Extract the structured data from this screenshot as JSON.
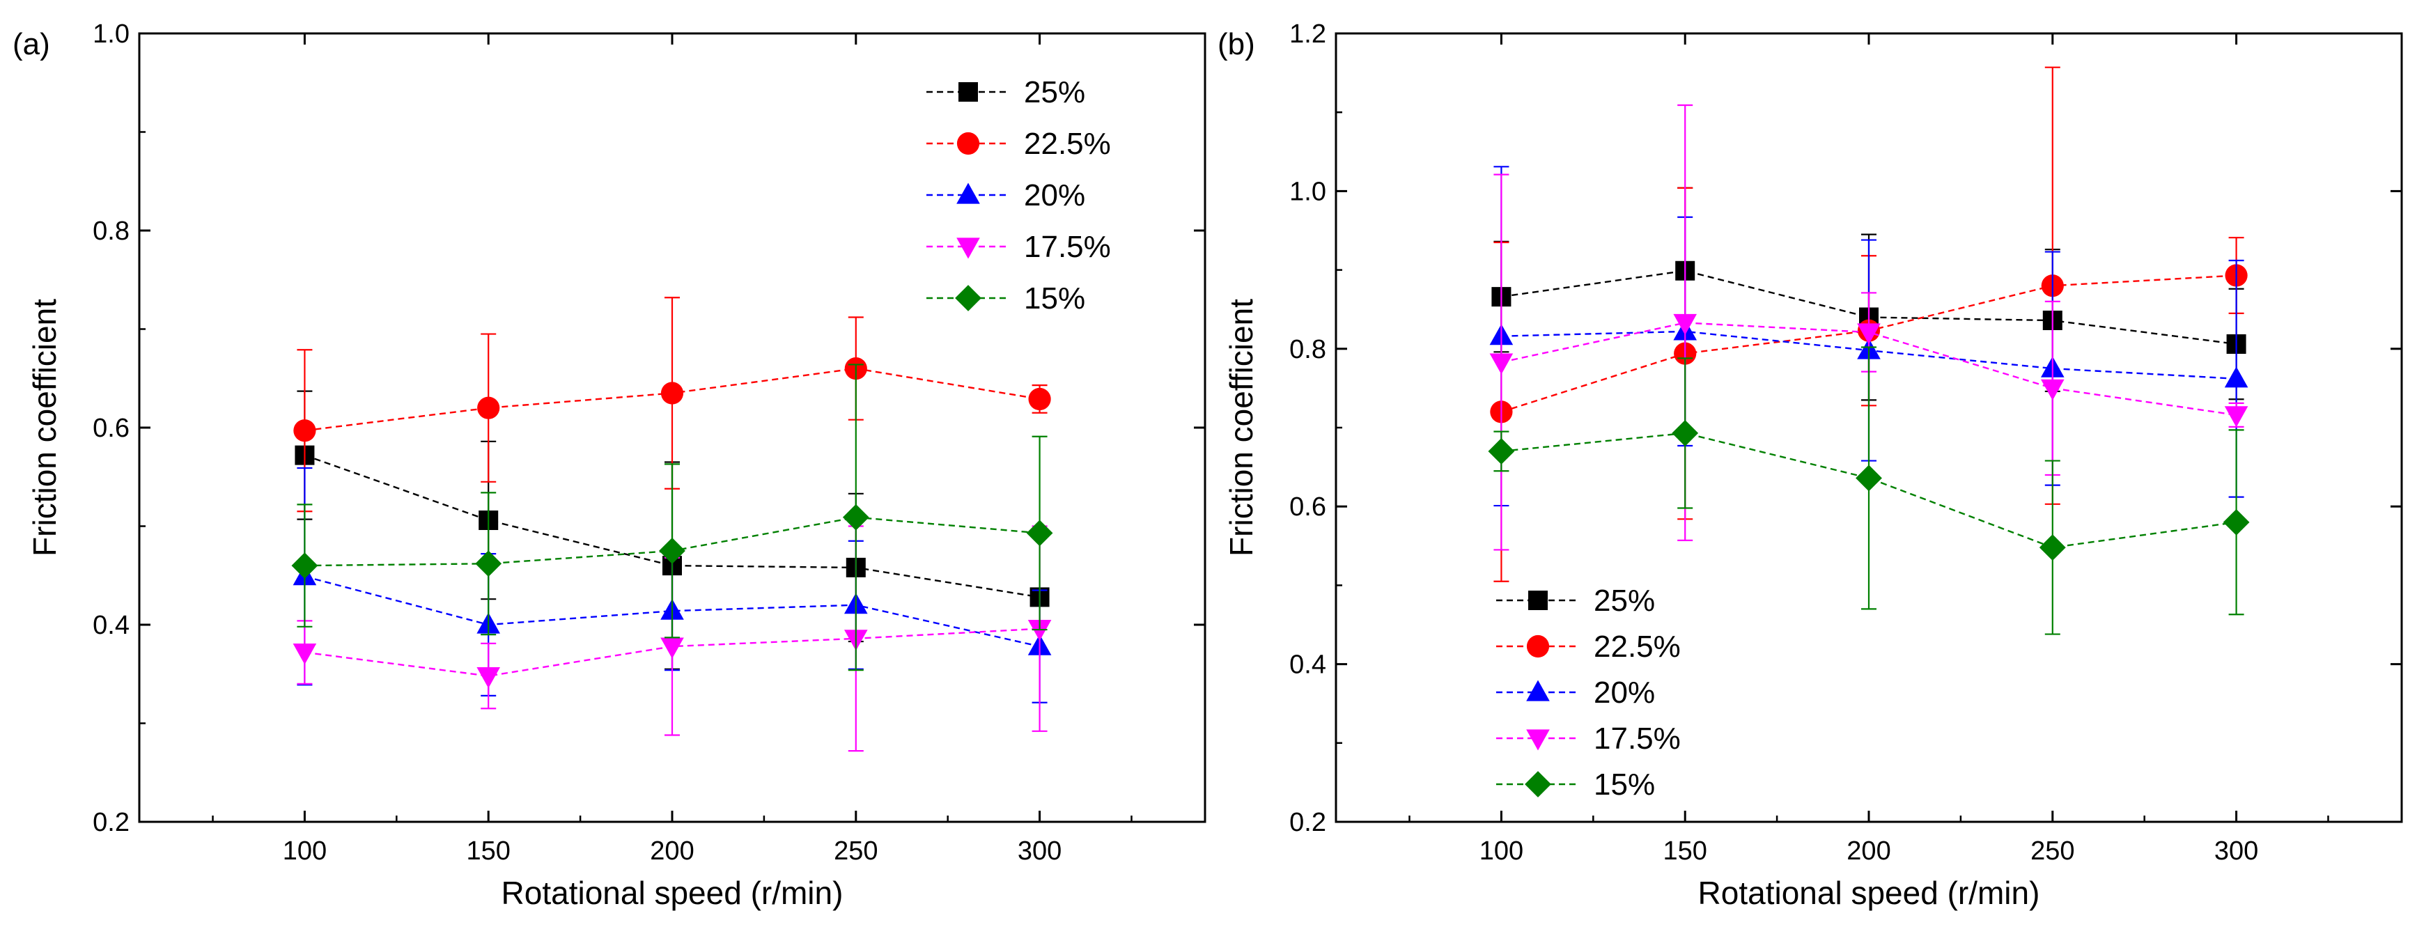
{
  "chart_data": [
    {
      "panel_label": "(a)",
      "type": "line",
      "xlabel": "Rotational speed (r/min)",
      "ylabel": "Friction coefficient",
      "xlim": [
        55,
        345
      ],
      "ylim": [
        0.2,
        1.0
      ],
      "x": [
        100,
        150,
        200,
        250,
        300
      ],
      "xticks": [
        100,
        150,
        200,
        250,
        300
      ],
      "yticks": [
        0.2,
        0.4,
        0.6,
        0.8,
        1.0
      ],
      "ytick_labels": [
        "0.2",
        "0.4",
        "0.6",
        "0.8",
        "1.0"
      ],
      "grid": false,
      "legend_position": "top-right",
      "series": [
        {
          "name": "25%",
          "color": "#000000",
          "marker": "square",
          "values": [
            0.572,
            0.506,
            0.46,
            0.458,
            0.428
          ],
          "err": [
            0.065,
            0.08,
            0.105,
            0.075,
            0.0
          ]
        },
        {
          "name": "22.5%",
          "color": "#ff0000",
          "marker": "circle",
          "values": [
            0.597,
            0.62,
            0.635,
            0.66,
            0.629
          ],
          "err": [
            0.082,
            0.075,
            0.097,
            0.052,
            0.014
          ]
        },
        {
          "name": "20%",
          "color": "#0000ff",
          "marker": "triangle-up",
          "values": [
            0.449,
            0.4,
            0.414,
            0.42,
            0.378
          ],
          "err": [
            0.11,
            0.072,
            0.06,
            0.065,
            0.057
          ]
        },
        {
          "name": "17.5%",
          "color": "#ff00ff",
          "marker": "triangle-down",
          "values": [
            0.372,
            0.348,
            0.378,
            0.386,
            0.396
          ],
          "err": [
            0.032,
            0.033,
            0.09,
            0.114,
            0.104
          ]
        },
        {
          "name": "15%",
          "color": "#008000",
          "marker": "diamond",
          "values": [
            0.46,
            0.462,
            0.475,
            0.509,
            0.493
          ],
          "err": [
            0.062,
            0.072,
            0.088,
            0.155,
            0.098
          ]
        }
      ]
    },
    {
      "panel_label": "(b)",
      "type": "line",
      "xlabel": "Rotational speed (r/min)",
      "ylabel": "Friction coefficient",
      "xlim": [
        55,
        345
      ],
      "ylim": [
        0.2,
        1.2
      ],
      "x": [
        100,
        150,
        200,
        250,
        300
      ],
      "xticks": [
        100,
        150,
        200,
        250,
        300
      ],
      "yticks": [
        0.2,
        0.4,
        0.6,
        0.8,
        1.0,
        1.2
      ],
      "ytick_labels": [
        "0.2",
        "0.4",
        "0.6",
        "0.8",
        "1.0",
        "1.2"
      ],
      "grid": false,
      "legend_position": "bottom-left",
      "series": [
        {
          "name": "25%",
          "color": "#000000",
          "marker": "square",
          "values": [
            0.866,
            0.899,
            0.84,
            0.836,
            0.806
          ],
          "err": [
            0.07,
            0.105,
            0.105,
            0.09,
            0.07
          ]
        },
        {
          "name": "22.5%",
          "color": "#ff0000",
          "marker": "circle",
          "values": [
            0.72,
            0.794,
            0.823,
            0.88,
            0.893
          ],
          "err": [
            0.215,
            0.21,
            0.095,
            0.277,
            0.048
          ]
        },
        {
          "name": "20%",
          "color": "#0000ff",
          "marker": "triangle-up",
          "values": [
            0.816,
            0.822,
            0.798,
            0.775,
            0.762
          ],
          "err": [
            0.215,
            0.145,
            0.14,
            0.148,
            0.15
          ]
        },
        {
          "name": "17.5%",
          "color": "#ff00ff",
          "marker": "triangle-down",
          "values": [
            0.783,
            0.833,
            0.821,
            0.75,
            0.716
          ],
          "err": [
            0.238,
            0.276,
            0.05,
            0.11,
            0.015
          ]
        },
        {
          "name": "15%",
          "color": "#008000",
          "marker": "diamond",
          "values": [
            0.67,
            0.693,
            0.636,
            0.548,
            0.58
          ],
          "err": [
            0.025,
            0.095,
            0.166,
            0.11,
            0.117
          ]
        }
      ]
    }
  ]
}
